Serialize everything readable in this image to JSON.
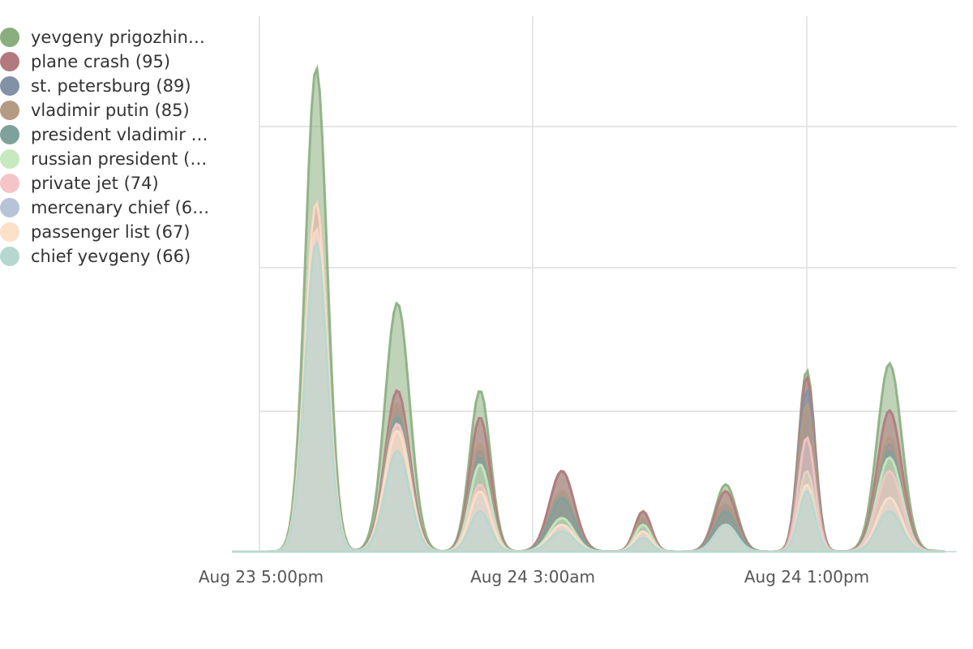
{
  "chart_data": {
    "type": "area",
    "stacked": false,
    "title": "",
    "xlabel": "",
    "ylabel": "",
    "x_ticks": [
      "Aug 23 5:00pm",
      "Aug 24 3:00am",
      "Aug 24 1:00pm"
    ],
    "x_tick_positions_hours": [
      0,
      10,
      20
    ],
    "x": [
      -2,
      -1,
      0,
      0.5,
      1,
      2,
      3,
      4,
      5,
      6,
      7,
      8,
      9,
      10,
      11,
      12,
      13,
      14,
      15,
      16,
      17,
      18,
      19,
      20,
      21,
      22,
      23,
      23.5,
      24,
      25
    ],
    "y_range": [
      0,
      38
    ],
    "grid": true,
    "legend_position": "top-left",
    "series": [
      {
        "name": "yevgeny prigozhin…",
        "color": "#8aae7e",
        "values": [
          0.6,
          0,
          36,
          36,
          2.5,
          1.5,
          18.5,
          1,
          0,
          12,
          0,
          0,
          0,
          0,
          0,
          0,
          0,
          0,
          0,
          0,
          0,
          0,
          0,
          0,
          0,
          0,
          0,
          0,
          0,
          0
        ]
      },
      {
        "name": "plane crash (95)",
        "color": "#b3797e",
        "values": [
          0.5,
          0,
          27,
          27,
          1.5,
          1,
          12,
          1,
          0,
          10,
          0,
          0,
          0,
          0,
          0,
          0,
          0,
          0,
          0,
          0,
          0,
          0,
          0,
          0,
          0,
          0,
          0,
          0,
          0,
          0
        ]
      },
      {
        "name": "st. petersburg (89)",
        "color": "#8391a7",
        "values": [
          0.5,
          0,
          26,
          26,
          1.5,
          1,
          11,
          1,
          0,
          7.5,
          0,
          0,
          0,
          0,
          0,
          0,
          0,
          0,
          0,
          0,
          0,
          0,
          0,
          0,
          0,
          0,
          0,
          0,
          0,
          0
        ]
      },
      {
        "name": "vladimir putin (85)",
        "color": "#b59a84",
        "values": [
          0.5,
          0,
          26,
          26,
          1.5,
          1,
          11,
          1,
          0,
          8,
          0,
          0,
          0,
          0,
          0,
          0,
          0,
          0,
          0,
          0,
          0,
          0,
          0,
          0,
          0,
          0,
          0,
          0,
          0,
          0
        ]
      },
      {
        "name": "president vladimir …",
        "color": "#7fa19b",
        "values": [
          0.5,
          0,
          25,
          25,
          1,
          1,
          10,
          1,
          0,
          7,
          0,
          0,
          0,
          0,
          0,
          0,
          0,
          0,
          0,
          0,
          0,
          0,
          0,
          0,
          0,
          0,
          0,
          0,
          0,
          0
        ]
      },
      {
        "name": "russian president (…",
        "color": "#c8e9c0",
        "values": [
          0.5,
          0,
          25,
          25,
          1,
          1,
          9.5,
          1,
          0,
          6.5,
          0,
          0,
          0,
          0,
          0,
          0,
          0,
          0,
          0,
          0,
          0,
          0,
          0,
          0,
          0,
          0,
          0,
          0,
          0,
          0
        ]
      },
      {
        "name": "private jet (74)",
        "color": "#f5c4c7",
        "values": [
          0.5,
          0,
          25,
          25,
          1,
          1,
          9.5,
          1,
          0,
          5,
          0,
          0,
          0,
          0,
          0,
          0,
          0,
          0,
          0,
          0,
          0,
          0,
          0,
          0,
          0,
          0,
          0,
          0,
          0,
          0
        ]
      },
      {
        "name": "mercenary chief (6…",
        "color": "#b7c4d8",
        "values": [
          0.5,
          0,
          23,
          23,
          1,
          1,
          7,
          1,
          0,
          4,
          0,
          0,
          0,
          0,
          0,
          0,
          0,
          0,
          0,
          0,
          0,
          0,
          0,
          0,
          0,
          0,
          0,
          0,
          0,
          0
        ]
      },
      {
        "name": "passenger list (67)",
        "color": "#fde0c8",
        "values": [
          0.5,
          0,
          26.5,
          26.5,
          1,
          1,
          9,
          1,
          0,
          4.5,
          0,
          0,
          0,
          0,
          0,
          0,
          0,
          0,
          0,
          0,
          0,
          0,
          0,
          0,
          0,
          0,
          0,
          0,
          0,
          0
        ]
      },
      {
        "name": "chief yevgeny (66)",
        "color": "#b6d7cf",
        "values": [
          0.6,
          0,
          23,
          23,
          1,
          1,
          7.5,
          0.5,
          0,
          3,
          0,
          0,
          0,
          0,
          0,
          0,
          0,
          0,
          0,
          0,
          0,
          0,
          0,
          0,
          0,
          0,
          0,
          0,
          0,
          0
        ]
      }
    ]
  }
}
